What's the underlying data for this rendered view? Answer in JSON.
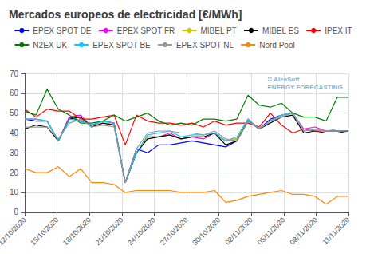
{
  "chart_data": {
    "type": "line",
    "title": "Mercados europeos de electricidad [€/MWh]",
    "annotations": [
      "∷ AleaSoft",
      "ENERGY FORECASTING"
    ],
    "x": [
      0,
      0.3448275862068966,
      0.6896551724137931,
      1.0344827586206897,
      1.3793103448275863,
      1.7241379310344827,
      2.0689655172413794,
      2.413793103448276,
      2.7586206896551726,
      3.103448275862069,
      3.4482758620689653,
      3.793103448275862,
      4.137931034482759,
      4.482758620689655,
      4.827586206896552,
      5.172413793103448,
      5.517241379310345,
      5.862068965517241,
      6.206896551724138,
      6.551724137931035,
      6.896551724137931,
      7.241379310344827,
      7.586206896551724,
      7.931034482758621,
      8.275862068965518,
      8.620689655172415,
      8.96551724137931,
      9.310344827586206,
      9.655172413793103,
      10
    ],
    "xlim": [
      0,
      10
    ],
    "xticks": [
      {
        "value": 0,
        "label": "12/10/2020"
      },
      {
        "value": 1,
        "label": "15/10/2020"
      },
      {
        "value": 2,
        "label": "18/10/2020"
      },
      {
        "value": 3,
        "label": "21/10/2020"
      },
      {
        "value": 4,
        "label": "24/10/2020"
      },
      {
        "value": 5,
        "label": "27/10/2020"
      },
      {
        "value": 6,
        "label": "30/10/2020"
      },
      {
        "value": 7,
        "label": "02/11/2020"
      },
      {
        "value": 8,
        "label": "05/11/2020"
      },
      {
        "value": 9,
        "label": "08/11/2020"
      },
      {
        "value": 10,
        "label": "11/11/2020"
      }
    ],
    "ylim": [
      0,
      70
    ],
    "yticks": [
      0,
      10,
      20,
      30,
      40,
      50,
      60,
      70
    ],
    "grid": true,
    "legend": "top",
    "series": [
      {
        "name": "EPEX SPOT DE",
        "color": "#0000ff",
        "values": [
          47,
          46,
          46,
          36,
          48,
          46,
          44,
          46,
          45,
          15,
          32,
          30,
          34,
          34,
          35,
          36,
          35,
          34,
          33,
          36,
          47,
          42,
          47,
          49,
          50,
          41,
          42,
          42,
          42,
          42
        ]
      },
      {
        "name": "EPEX SPOT FR",
        "color": "#ff00ff",
        "values": [
          47,
          47,
          46,
          36,
          48,
          49,
          43,
          46,
          45,
          15,
          30,
          38,
          38,
          40,
          37,
          38,
          37,
          40,
          36,
          37,
          47,
          42,
          46,
          49,
          50,
          42,
          43,
          41,
          41,
          41
        ]
      },
      {
        "name": "MIBEL PT",
        "color": "#cccc00",
        "values": [
          47,
          47,
          46,
          36,
          47,
          48,
          43,
          46,
          44,
          15,
          30,
          38,
          38,
          39,
          37,
          38,
          38,
          40,
          36,
          37,
          47,
          42,
          46,
          49,
          50,
          41,
          42,
          41,
          41,
          41
        ]
      },
      {
        "name": "MIBEL ES",
        "color": "#000000",
        "values": [
          42,
          44,
          43,
          36,
          47,
          48,
          43,
          45,
          44,
          15,
          30,
          37,
          38,
          39,
          37,
          38,
          38,
          40,
          34,
          36,
          46,
          42,
          45,
          48,
          49,
          40,
          41,
          40,
          40,
          41
        ]
      },
      {
        "name": "IPEX IT",
        "color": "#ff0000",
        "values": [
          52,
          48,
          52,
          51,
          51,
          47,
          47,
          48,
          49,
          34,
          49,
          46,
          45,
          45,
          44,
          45,
          43,
          46,
          44,
          45,
          45,
          43,
          50,
          44,
          40,
          42,
          41,
          41,
          41,
          41
        ]
      },
      {
        "name": "N2EX UK",
        "color": "#008000",
        "values": [
          51,
          49,
          62,
          52,
          49,
          45,
          45,
          46,
          49,
          46,
          48,
          50,
          46,
          44,
          45,
          44,
          47,
          47,
          46,
          47,
          59,
          54,
          53,
          55,
          50,
          48,
          48,
          46,
          58,
          58
        ]
      },
      {
        "name": "EPEX SPOT BE",
        "color": "#00ccff",
        "values": [
          47,
          47,
          46,
          36,
          47,
          46,
          44,
          46,
          45,
          15,
          30,
          39,
          40,
          41,
          38,
          39,
          39,
          40,
          36,
          38,
          47,
          42,
          46,
          49,
          50,
          41,
          42,
          41,
          41,
          41
        ]
      },
      {
        "name": "EPEX SPOT NL",
        "color": "#999999",
        "values": [
          43,
          43,
          43,
          37,
          45,
          47,
          43,
          44,
          43,
          15,
          32,
          40,
          41,
          41,
          40,
          40,
          39,
          41,
          37,
          36,
          46,
          42,
          46,
          48,
          50,
          41,
          42,
          41,
          42,
          42
        ]
      },
      {
        "name": "Nord Pool",
        "color": "#ff8800",
        "values": [
          22,
          20,
          20,
          23,
          18,
          22,
          15,
          15,
          14,
          10,
          11,
          11,
          11,
          11,
          10,
          10,
          10,
          11,
          5,
          6,
          8,
          9,
          10,
          11,
          9,
          9,
          8,
          4,
          8,
          8
        ]
      }
    ]
  }
}
